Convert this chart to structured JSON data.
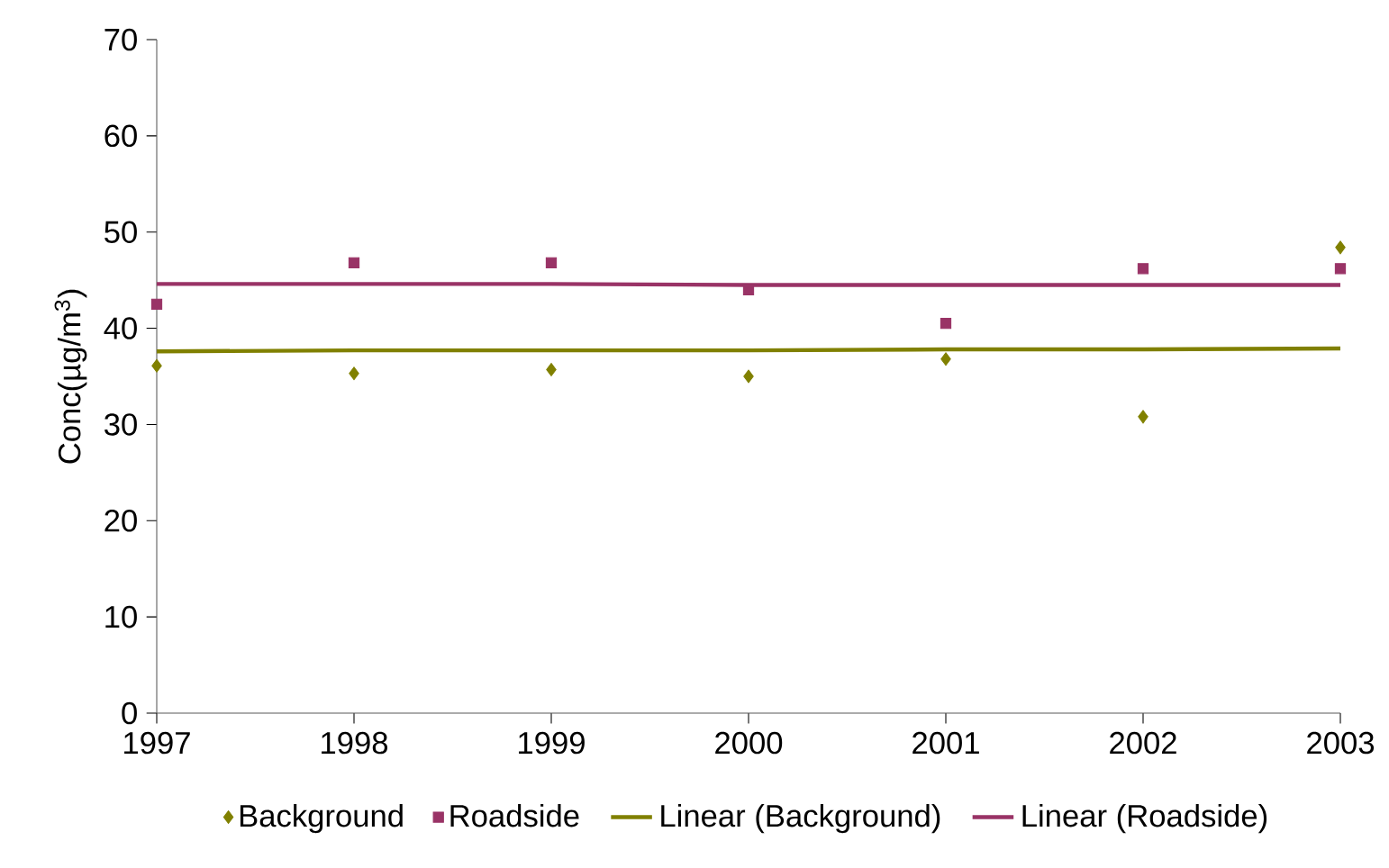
{
  "chart_data": {
    "type": "scatter",
    "ylabel": "Conc(µg/m$^{3}$)",
    "x": [
      1997,
      1998,
      1999,
      2000,
      2001,
      2002,
      2003
    ],
    "series": [
      {
        "name": "Background",
        "color": "#808000",
        "marker": "diamond",
        "values": [
          36.1,
          35.3,
          35.7,
          35.0,
          36.8,
          30.8,
          48.4
        ]
      },
      {
        "name": "Roadside",
        "color": "#993366",
        "marker": "square",
        "values": [
          42.5,
          46.8,
          46.8,
          44.0,
          40.5,
          46.2,
          46.2
        ]
      },
      {
        "name": "Linear (Background)",
        "type": "line",
        "color": "#808000",
        "marker": "none",
        "line_style": "solid",
        "values": [
          37.6,
          37.7,
          37.7,
          37.7,
          37.8,
          37.8,
          37.9
        ]
      },
      {
        "name": "Linear (Roadside)",
        "type": "line",
        "color": "#993366",
        "marker": "none",
        "line_style": "solid",
        "values": [
          44.6,
          44.6,
          44.6,
          44.5,
          44.5,
          44.5,
          44.5
        ]
      }
    ],
    "xlim": [
      1997,
      2003
    ],
    "xticks": [
      1997,
      1998,
      1999,
      2000,
      2001,
      2002,
      2003
    ],
    "ylim": [
      0,
      70
    ],
    "yticks": [
      0,
      10,
      20,
      30,
      40,
      50,
      60,
      70
    ],
    "grid": false,
    "legend": "bottom"
  }
}
